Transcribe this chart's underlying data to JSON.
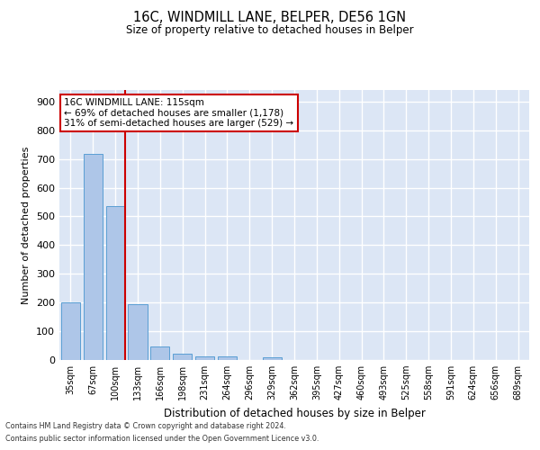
{
  "title": "16C, WINDMILL LANE, BELPER, DE56 1GN",
  "subtitle": "Size of property relative to detached houses in Belper",
  "xlabel": "Distribution of detached houses by size in Belper",
  "ylabel": "Number of detached properties",
  "bar_labels": [
    "35sqm",
    "67sqm",
    "100sqm",
    "133sqm",
    "166sqm",
    "198sqm",
    "231sqm",
    "264sqm",
    "296sqm",
    "329sqm",
    "362sqm",
    "395sqm",
    "427sqm",
    "460sqm",
    "493sqm",
    "525sqm",
    "558sqm",
    "591sqm",
    "624sqm",
    "656sqm",
    "689sqm"
  ],
  "bar_values": [
    200,
    716,
    537,
    193,
    47,
    22,
    13,
    11,
    0,
    10,
    0,
    0,
    0,
    0,
    0,
    0,
    0,
    0,
    0,
    0,
    0
  ],
  "bar_color": "#aec6e8",
  "bar_edge_color": "#5a9fd4",
  "background_color": "#dce6f5",
  "grid_color": "#ffffff",
  "vline_color": "#cc0000",
  "annotation_text": "16C WINDMILL LANE: 115sqm\n← 69% of detached houses are smaller (1,178)\n31% of semi-detached houses are larger (529) →",
  "annotation_box_color": "#ffffff",
  "annotation_box_edge": "#cc0000",
  "ylim": [
    0,
    940
  ],
  "yticks": [
    0,
    100,
    200,
    300,
    400,
    500,
    600,
    700,
    800,
    900
  ],
  "footer1": "Contains HM Land Registry data © Crown copyright and database right 2024.",
  "footer2": "Contains public sector information licensed under the Open Government Licence v3.0."
}
